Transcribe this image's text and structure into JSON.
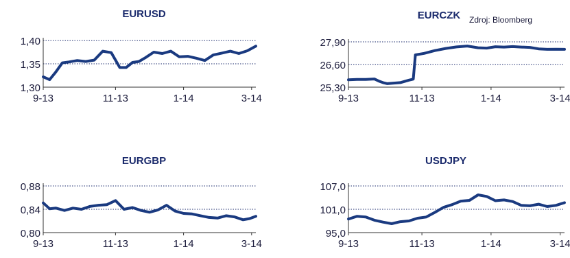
{
  "source_note": "Zdroj: Bloomberg",
  "chart_data": [
    {
      "type": "line",
      "title": "EURUSD",
      "x_tick_labels": [
        "9-13",
        "11-13",
        "1-14",
        "3-14"
      ],
      "y_tick_labels": [
        "1,30",
        "1,35",
        "1,40"
      ],
      "y_ticks": [
        1.3,
        1.35,
        1.4
      ],
      "ylim": [
        1.3,
        1.4
      ],
      "grid": "horizontal dotted",
      "series": [
        {
          "x": [
            0,
            3,
            6,
            9,
            12,
            16,
            20,
            24,
            28,
            32,
            36,
            39,
            42,
            45,
            48,
            52,
            56,
            60,
            64,
            68,
            72,
            76,
            80,
            84,
            88,
            92,
            96,
            100
          ],
          "values": [
            1.322,
            1.316,
            1.333,
            1.352,
            1.354,
            1.357,
            1.355,
            1.358,
            1.377,
            1.374,
            1.342,
            1.342,
            1.353,
            1.355,
            1.363,
            1.375,
            1.372,
            1.377,
            1.365,
            1.366,
            1.362,
            1.357,
            1.369,
            1.373,
            1.377,
            1.372,
            1.378,
            1.388
          ]
        }
      ]
    },
    {
      "type": "line",
      "title": "EURCZK",
      "x_tick_labels": [
        "9-13",
        "11-13",
        "1-14",
        "3-14"
      ],
      "y_tick_labels": [
        "25,30",
        "26,60",
        "27,90"
      ],
      "y_ticks": [
        25.3,
        26.6,
        27.9
      ],
      "ylim": [
        25.3,
        27.9
      ],
      "grid": "horizontal dotted",
      "series": [
        {
          "x": [
            0,
            4,
            8,
            12,
            14,
            16,
            18,
            20,
            24,
            28,
            30,
            31,
            35,
            40,
            45,
            50,
            55,
            60,
            64,
            68,
            72,
            76,
            80,
            84,
            88,
            92,
            96,
            100
          ],
          "values": [
            25.72,
            25.74,
            25.74,
            25.77,
            25.65,
            25.56,
            25.5,
            25.52,
            25.56,
            25.7,
            25.76,
            27.15,
            27.24,
            27.4,
            27.52,
            27.61,
            27.66,
            27.56,
            27.54,
            27.62,
            27.6,
            27.63,
            27.6,
            27.58,
            27.5,
            27.47,
            27.48,
            27.47
          ]
        }
      ]
    },
    {
      "type": "line",
      "title": "EURGBP",
      "x_tick_labels": [
        "9-13",
        "11-13",
        "1-14",
        "3-14"
      ],
      "y_tick_labels": [
        "0,80",
        "0,84",
        "0,88"
      ],
      "y_ticks": [
        0.8,
        0.84,
        0.88
      ],
      "ylim": [
        0.8,
        0.88
      ],
      "grid": "horizontal dotted",
      "series": [
        {
          "x": [
            0,
            3,
            6,
            10,
            14,
            18,
            22,
            26,
            30,
            34,
            38,
            42,
            46,
            50,
            54,
            58,
            62,
            66,
            70,
            74,
            78,
            82,
            86,
            90,
            94,
            97,
            100
          ],
          "values": [
            0.851,
            0.841,
            0.842,
            0.838,
            0.842,
            0.84,
            0.845,
            0.847,
            0.848,
            0.855,
            0.84,
            0.843,
            0.838,
            0.835,
            0.839,
            0.847,
            0.837,
            0.833,
            0.832,
            0.829,
            0.826,
            0.825,
            0.829,
            0.827,
            0.822,
            0.824,
            0.828
          ]
        }
      ]
    },
    {
      "type": "line",
      "title": "USDJPY",
      "x_tick_labels": [
        "9-13",
        "11-13",
        "1-14",
        "3-14"
      ],
      "y_tick_labels": [
        "95,0",
        "101,0",
        "107,0"
      ],
      "y_ticks": [
        95.0,
        101.0,
        107.0
      ],
      "ylim": [
        95.0,
        107.0
      ],
      "grid": "horizontal dotted",
      "series": [
        {
          "x": [
            0,
            4,
            8,
            12,
            16,
            20,
            24,
            28,
            32,
            36,
            40,
            44,
            48,
            52,
            56,
            60,
            64,
            68,
            72,
            76,
            80,
            84,
            88,
            92,
            96,
            100
          ],
          "values": [
            98.5,
            99.2,
            99.0,
            98.2,
            97.7,
            97.3,
            97.8,
            98.0,
            98.7,
            99.0,
            100.2,
            101.5,
            102.2,
            103.1,
            103.3,
            104.7,
            104.3,
            103.2,
            103.4,
            103.0,
            102.0,
            101.9,
            102.3,
            101.7,
            102.0,
            102.7
          ]
        }
      ]
    }
  ]
}
